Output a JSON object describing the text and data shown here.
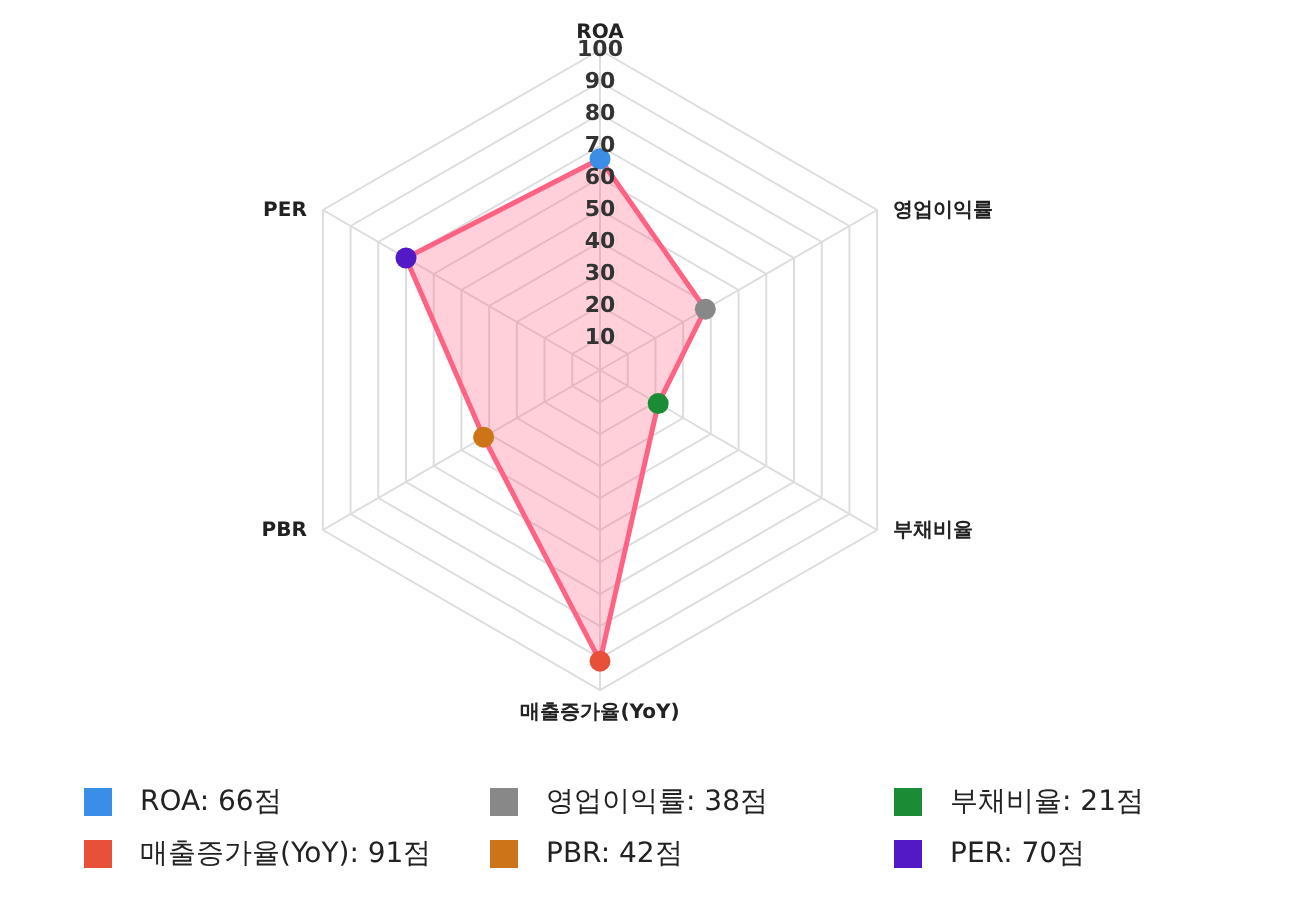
{
  "chart_data": {
    "type": "radar",
    "categories": [
      "ROA",
      "영업이익률",
      "부채비율",
      "매출증가율(YoY)",
      "PBR",
      "PER"
    ],
    "series": [
      {
        "color": "#ff6384",
        "values": [
          66,
          38,
          21,
          91,
          42,
          70
        ]
      }
    ],
    "colors": [
      "#3a8ee6",
      "#888888",
      "#1b8c36",
      "#e9503a",
      "#cc7417",
      "#5419c6"
    ],
    "annotations": [
      "ROA: 66점",
      "영업이익률: 38점",
      "부채비율: 21점",
      "매출증가율(YoY): 91점",
      "PBR: 42점",
      "PER: 70점"
    ],
    "ylim": [
      0,
      100
    ],
    "yticks": [
      10,
      20,
      30,
      40,
      50,
      60,
      70,
      80,
      90,
      100
    ],
    "grid": true,
    "marker": "circle",
    "line_style": "solid"
  }
}
